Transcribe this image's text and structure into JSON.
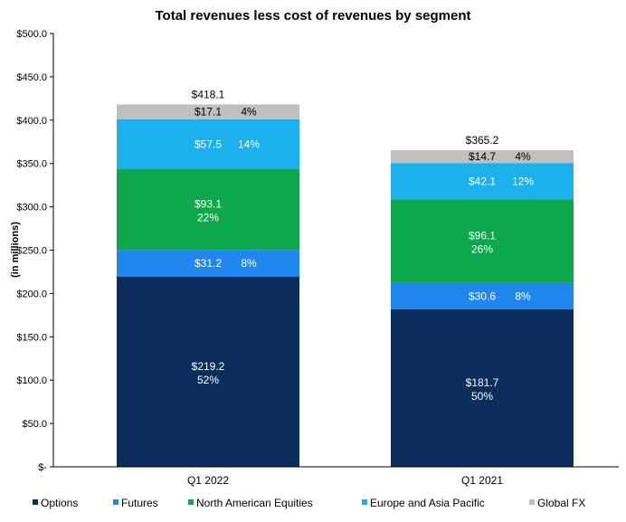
{
  "chart_data": {
    "type": "bar",
    "stacked": true,
    "title": "Total revenues less cost of revenues by segment",
    "xlabel": "",
    "ylabel": "(in millions)",
    "ylim": [
      0,
      500
    ],
    "yticks": [
      0,
      50,
      100,
      150,
      200,
      250,
      300,
      350,
      400,
      450,
      500
    ],
    "ytick_labels": [
      "$-",
      "$50.0",
      "$100.0",
      "$150.0",
      "$200.0",
      "$250.0",
      "$300.0",
      "$350.0",
      "$400.0",
      "$450.0",
      "$500.0"
    ],
    "grid": false,
    "legend_position": "bottom",
    "categories": [
      "Q1 2022",
      "Q1 2021"
    ],
    "totals": [
      418.1,
      365.2
    ],
    "total_labels": [
      "$418.1",
      "$365.2"
    ],
    "series": [
      {
        "name": "Options",
        "color": "#0b2e5c",
        "values": [
          219.2,
          181.7
        ],
        "labels": [
          "$219.2",
          "$181.7"
        ],
        "pct": [
          "52%",
          "50%"
        ],
        "layout": "stacked"
      },
      {
        "name": "Futures",
        "color": "#1f87ee",
        "values": [
          31.2,
          30.6
        ],
        "labels": [
          "$31.2",
          "$30.6"
        ],
        "pct": [
          "8%",
          "8%"
        ],
        "layout": "inline"
      },
      {
        "name": "North American Equities",
        "color": "#0da84c",
        "values": [
          93.1,
          96.1
        ],
        "labels": [
          "$93.1",
          "$96.1"
        ],
        "pct": [
          "22%",
          "26%"
        ],
        "layout": "stacked"
      },
      {
        "name": "Europe and Asia Pacific",
        "color": "#1cb0ec",
        "values": [
          57.5,
          42.1
        ],
        "labels": [
          "$57.5",
          "$42.1"
        ],
        "pct": [
          "14%",
          "12%"
        ],
        "layout": "inline"
      },
      {
        "name": "Global FX",
        "color": "#bfbfbf",
        "values": [
          17.1,
          14.7
        ],
        "labels": [
          "$17.1",
          "$14.7"
        ],
        "pct": [
          "4%",
          "4%"
        ],
        "layout": "inline"
      }
    ]
  }
}
